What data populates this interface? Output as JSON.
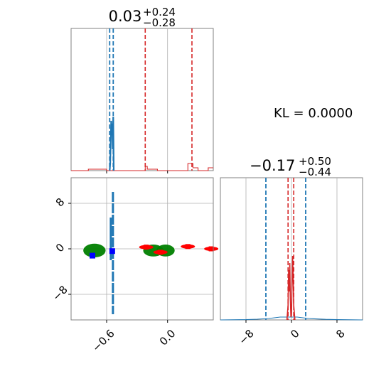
{
  "chart_data": [
    {
      "panel": "top-left",
      "type": "line",
      "title_main": "0.03",
      "title_sup": "+0.24",
      "title_sub": "−0.28",
      "xlim": [
        -0.95,
        0.45
      ],
      "grid": true,
      "colors": {
        "blue": "#1f77b4",
        "red": "#d62728"
      },
      "quantiles_blue": [
        -0.57,
        -0.535
      ],
      "quantiles_red": [
        -0.22,
        0.24
      ],
      "series": [
        {
          "color": "red",
          "x": [
            -0.95,
            -0.78,
            -0.78,
            -0.6,
            -0.6,
            -0.55,
            -0.55,
            -0.22,
            -0.22,
            -0.2,
            -0.2,
            -0.1,
            -0.1,
            0.2,
            0.2,
            0.25,
            0.25,
            0.3,
            0.3,
            0.4,
            0.4,
            0.45
          ],
          "y": [
            0,
            0,
            0.01,
            0.01,
            0,
            0,
            0,
            0,
            0.03,
            0.03,
            0.01,
            0.01,
            0,
            0,
            0.05,
            0.05,
            0.02,
            0.02,
            0,
            0,
            0.02,
            0.02
          ]
        },
        {
          "color": "blue",
          "x": [
            -0.57,
            -0.565,
            -0.56,
            -0.555,
            -0.55,
            -0.545,
            -0.54,
            -0.535,
            -0.53
          ],
          "y": [
            0,
            0.05,
            0.2,
            0.35,
            0.3,
            0.33,
            0.15,
            0.38,
            0
          ]
        }
      ]
    },
    {
      "panel": "bottom-left",
      "type": "scatter",
      "xlim": [
        -0.95,
        0.45
      ],
      "ylim": [
        -12.5,
        12.5
      ],
      "xticks": [
        -0.6,
        0.0
      ],
      "xtick_labels": [
        "−0.6",
        "0.0"
      ],
      "yticks": [
        -8,
        0,
        8
      ],
      "ytick_labels": [
        "−8",
        "0",
        "8"
      ],
      "grid": true,
      "colors": {
        "blue": "#1f77b4",
        "red": "#ff0000",
        "green": "#008000",
        "square": "#0000ff"
      },
      "green_ellipses": [
        {
          "cx": -0.72,
          "cy": -0.3,
          "rx": 0.11,
          "ry": 0.4
        },
        {
          "cx": -0.14,
          "cy": -0.3,
          "rx": 0.1,
          "ry": 0.35
        },
        {
          "cx": -0.02,
          "cy": -0.3,
          "rx": 0.09,
          "ry": 0.35
        }
      ],
      "red_markers": [
        {
          "x": -0.21,
          "y": 0.3
        },
        {
          "x": -0.07,
          "y": -0.6
        },
        {
          "x": 0.2,
          "y": 0.4
        },
        {
          "x": 0.43,
          "y": 0.0
        }
      ],
      "blue_squares": [
        {
          "x": -0.74,
          "y": -1.2
        },
        {
          "x": -0.545,
          "y": -0.4
        }
      ],
      "blue_vertical": {
        "x": -0.545,
        "y_from": -11.5,
        "y_to": 10
      }
    },
    {
      "panel": "bottom-right",
      "type": "line",
      "title_main": "−0.17",
      "title_sup": "+0.50",
      "title_sub": "−0.44",
      "xlim": [
        -12.5,
        12.5
      ],
      "xticks": [
        -8,
        0,
        8
      ],
      "xtick_labels": [
        "−8",
        "0",
        "8"
      ],
      "grid": true,
      "colors": {
        "blue": "#1f77b4",
        "red": "#d62728"
      },
      "quantiles_blue": [
        -4.5,
        2.5
      ],
      "quantiles_red": [
        -0.6,
        0.4
      ],
      "series": [
        {
          "color": "blue",
          "x": [
            -12.5,
            -8,
            -6,
            -4,
            -3,
            -2,
            -1,
            0,
            1,
            2,
            3,
            4,
            6,
            8,
            12.5
          ],
          "y": [
            0,
            0.002,
            0.005,
            0.01,
            0.015,
            0.02,
            0.02,
            0.02,
            0.02,
            0.015,
            0.01,
            0.008,
            0.004,
            0.002,
            0
          ]
        },
        {
          "color": "red",
          "x": [
            -0.8,
            -0.6,
            -0.5,
            -0.4,
            -0.3,
            -0.2,
            -0.1,
            0.0,
            0.1,
            0.2,
            0.3,
            0.4,
            0.5,
            0.6
          ],
          "y": [
            0,
            0.1,
            0.35,
            0.2,
            0.4,
            0.15,
            0.02,
            0.03,
            0.25,
            0.45,
            0.3,
            0.1,
            0.05,
            0
          ]
        }
      ]
    }
  ],
  "kl_label": "KL = 0.0000"
}
